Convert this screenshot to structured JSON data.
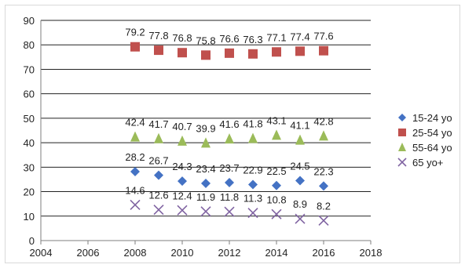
{
  "chart_data": {
    "type": "scatter",
    "title": "",
    "xlabel": "",
    "ylabel": "",
    "xlim": [
      2004,
      2018
    ],
    "ylim": [
      0,
      90
    ],
    "x_ticks": [
      "2004",
      "2006",
      "2008",
      "2010",
      "2012",
      "2014",
      "2016",
      "2018"
    ],
    "y_ticks": [
      "0",
      "10",
      "20",
      "30",
      "40",
      "50",
      "60",
      "70",
      "80",
      "90"
    ],
    "grid": "horizontal",
    "legend": "right",
    "x": [
      2008,
      2009,
      2010,
      2011,
      2012,
      2013,
      2014,
      2015,
      2016
    ],
    "series": [
      {
        "name": "15-24 yo",
        "marker": "diamond",
        "color": "#4472c4",
        "values": [
          28.2,
          26.7,
          24.3,
          23.4,
          23.7,
          22.9,
          22.5,
          24.5,
          22.3
        ],
        "labels": [
          "28.2",
          "26.7",
          "24.3",
          "23.4",
          "23.7",
          "22.9",
          "22.5",
          "24.5",
          "22.3"
        ]
      },
      {
        "name": "25-54 yo",
        "marker": "square",
        "color": "#c0504d",
        "values": [
          79.2,
          77.8,
          76.8,
          75.8,
          76.6,
          76.3,
          77.1,
          77.4,
          77.6
        ],
        "labels": [
          "79.2",
          "77.8",
          "76.8",
          "75.8",
          "76.6",
          "76.3",
          "77.1",
          "77.4",
          "77.6"
        ]
      },
      {
        "name": "55-64 yo",
        "marker": "triangle",
        "color": "#9bbb59",
        "values": [
          42.4,
          41.7,
          40.7,
          39.9,
          41.6,
          41.8,
          43.1,
          41.1,
          42.8
        ],
        "labels": [
          "42.4",
          "41.7",
          "40.7",
          "39.9",
          "41.6",
          "41.8",
          "43.1",
          "41.1",
          "42.8"
        ]
      },
      {
        "name": "65 yo+",
        "marker": "x",
        "color": "#8064a2",
        "values": [
          14.6,
          12.6,
          12.4,
          11.9,
          11.8,
          11.3,
          10.8,
          8.9,
          8.2
        ],
        "labels": [
          "14.6",
          "12.6",
          "12.4",
          "11.9",
          "11.8",
          "11.3",
          "10.8",
          "8.9",
          "8.2"
        ]
      }
    ]
  }
}
